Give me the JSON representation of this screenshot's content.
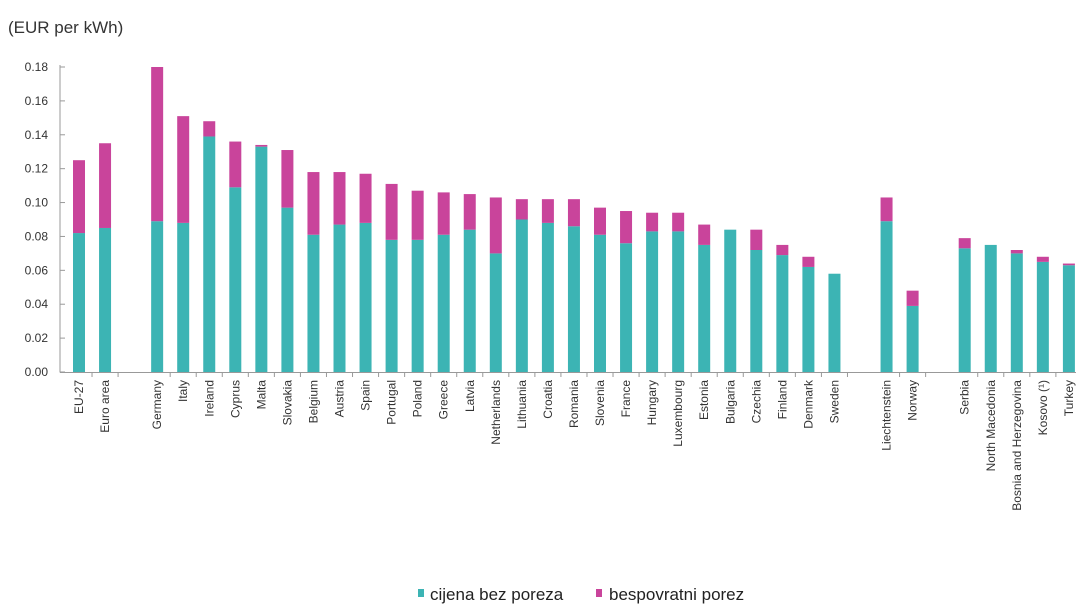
{
  "chart_data": {
    "type": "bar",
    "stacked": true,
    "unit_label": "(EUR per kWh)",
    "ylim": [
      0,
      0.18
    ],
    "yticks": [
      "0.00",
      "0.02",
      "0.04",
      "0.06",
      "0.08",
      "0.10",
      "0.12",
      "0.14",
      "0.16",
      "0.18"
    ],
    "grid": false,
    "legend_position": "bottom",
    "groups": [
      [
        "EU-27",
        "Euro area"
      ],
      [
        "Germany",
        "Italy",
        "Ireland",
        "Cyprus",
        "Malta",
        "Slovakia",
        "Belgium",
        "Austria",
        "Spain",
        "Portugal",
        "Poland",
        "Greece",
        "Latvia",
        "Netherlands",
        "Lithuania",
        "Croatia",
        "Romania",
        "Slovenia",
        "France",
        "Hungary",
        "Luxembourg",
        "Estonia",
        "Bulgaria",
        "Czechia",
        "Finland",
        "Denmark",
        "Sweden"
      ],
      [
        "Liechtenstein",
        "Norway"
      ],
      [
        "Serbia",
        "North Macedonia",
        "Bosnia and Herzegovina",
        "Kosovo (¹)",
        "Turkey"
      ]
    ],
    "categories": [
      "EU-27",
      "Euro area",
      "Germany",
      "Italy",
      "Ireland",
      "Cyprus",
      "Malta",
      "Slovakia",
      "Belgium",
      "Austria",
      "Spain",
      "Portugal",
      "Poland",
      "Greece",
      "Latvia",
      "Netherlands",
      "Lithuania",
      "Croatia",
      "Romania",
      "Slovenia",
      "France",
      "Hungary",
      "Luxembourg",
      "Estonia",
      "Bulgaria",
      "Czechia",
      "Finland",
      "Denmark",
      "Sweden",
      "Liechtenstein",
      "Norway",
      "Serbia",
      "North Macedonia",
      "Bosnia and Herzegovina",
      "Kosovo (¹)",
      "Turkey"
    ],
    "series": [
      {
        "name": "cijena bez poreza",
        "color": "#3cb4b4",
        "values": [
          0.082,
          0.085,
          0.089,
          0.088,
          0.139,
          0.109,
          0.133,
          0.097,
          0.081,
          0.087,
          0.088,
          0.078,
          0.078,
          0.081,
          0.084,
          0.07,
          0.09,
          0.088,
          0.086,
          0.081,
          0.076,
          0.083,
          0.083,
          0.075,
          0.084,
          0.072,
          0.069,
          0.062,
          0.058,
          0.089,
          0.039,
          0.073,
          0.075,
          0.07,
          0.065,
          0.063
        ]
      },
      {
        "name": "bespovratni porez",
        "color": "#c9449b",
        "values": [
          0.043,
          0.05,
          0.091,
          0.063,
          0.009,
          0.027,
          0.001,
          0.034,
          0.037,
          0.031,
          0.029,
          0.033,
          0.029,
          0.025,
          0.021,
          0.033,
          0.012,
          0.014,
          0.016,
          0.016,
          0.019,
          0.011,
          0.011,
          0.012,
          0.0,
          0.012,
          0.006,
          0.006,
          0.0,
          0.014,
          0.009,
          0.006,
          0.0,
          0.002,
          0.003,
          0.001
        ]
      }
    ]
  }
}
